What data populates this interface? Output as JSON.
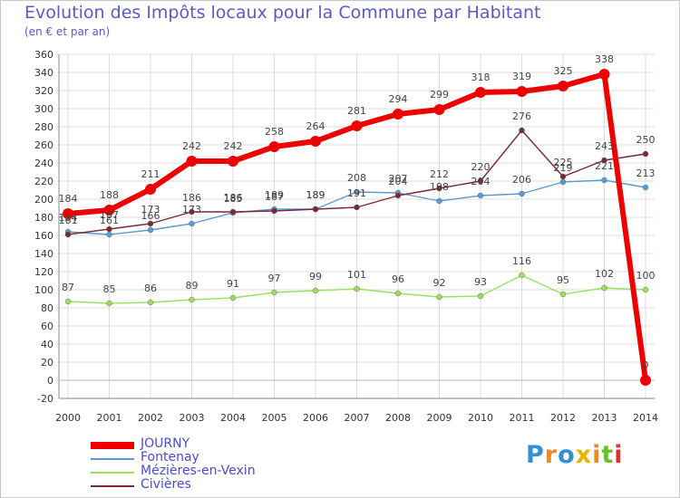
{
  "title": "Evolution des Impôts locaux pour la Commune par Habitant",
  "subtitle": "(en € et par an)",
  "logo": {
    "text": "Proxiti",
    "letters": [
      "P",
      "r",
      "o",
      "x",
      "i",
      "t",
      "i"
    ],
    "colors": [
      "#2f8fd8",
      "#f08a1c",
      "#2f8fd8",
      "#e8b400",
      "#f08a1c",
      "#6abf2a",
      "#e03030"
    ]
  },
  "chart_data": {
    "type": "line",
    "title": "Evolution des Impôts locaux pour la Commune par Habitant",
    "subtitle": "(en € et par an)",
    "xlabel": "",
    "ylabel": "",
    "ylim": [
      -20,
      360
    ],
    "y_ticks": [
      -20,
      0,
      20,
      40,
      60,
      80,
      100,
      120,
      140,
      160,
      180,
      200,
      220,
      240,
      260,
      280,
      300,
      320,
      340,
      360
    ],
    "grid": true,
    "legend_position": "bottom-left",
    "categories": [
      "2000",
      "2001",
      "2002",
      "2003",
      "2004",
      "2005",
      "2006",
      "2007",
      "2008",
      "2009",
      "2010",
      "2011",
      "2012",
      "2013",
      "2014"
    ],
    "series": [
      {
        "name": "Fontenay",
        "color": "#5b9bd5",
        "values": [
          164,
          161,
          166,
          173,
          185,
          189,
          189,
          208,
          207,
          198,
          204,
          206,
          219,
          221,
          213
        ],
        "labels": [
          "164",
          "161",
          "166",
          "173",
          "185",
          "189",
          "189",
          "208",
          "207",
          "198",
          "204",
          "206",
          "219",
          "221",
          "213"
        ]
      },
      {
        "name": "Mézières-en-Vexin",
        "color": "#9ae060",
        "values": [
          87,
          85,
          86,
          89,
          91,
          97,
          99,
          101,
          96,
          92,
          93,
          116,
          95,
          102,
          100
        ],
        "labels": [
          "87",
          "85",
          "86",
          "89",
          "91",
          "97",
          "99",
          "101",
          "96",
          "92",
          "93",
          "116",
          "95",
          "102",
          "100"
        ]
      },
      {
        "name": "Civières",
        "color": "#7a2a30",
        "values": [
          161,
          167,
          173,
          186,
          186,
          187,
          189,
          191,
          204,
          212,
          220,
          276,
          225,
          243,
          250
        ],
        "labels": [
          "161",
          "167",
          "173",
          "186",
          "186",
          "187",
          "189",
          "191",
          "204",
          "212",
          "220",
          "276",
          "225",
          "243",
          "250"
        ]
      },
      {
        "name": "JOURNY",
        "color": "#ee0000",
        "values": [
          184,
          188,
          211,
          242,
          242,
          258,
          264,
          281,
          294,
          299,
          318,
          319,
          325,
          338,
          0
        ],
        "labels": [
          "184",
          "188",
          "211",
          "242",
          "242",
          "258",
          "264",
          "281",
          "294",
          "299",
          "318",
          "319",
          "325",
          "338",
          "0"
        ]
      }
    ],
    "legend": [
      "JOURNY",
      "Fontenay",
      "Mézières-en-Vexin",
      "Civières"
    ]
  }
}
